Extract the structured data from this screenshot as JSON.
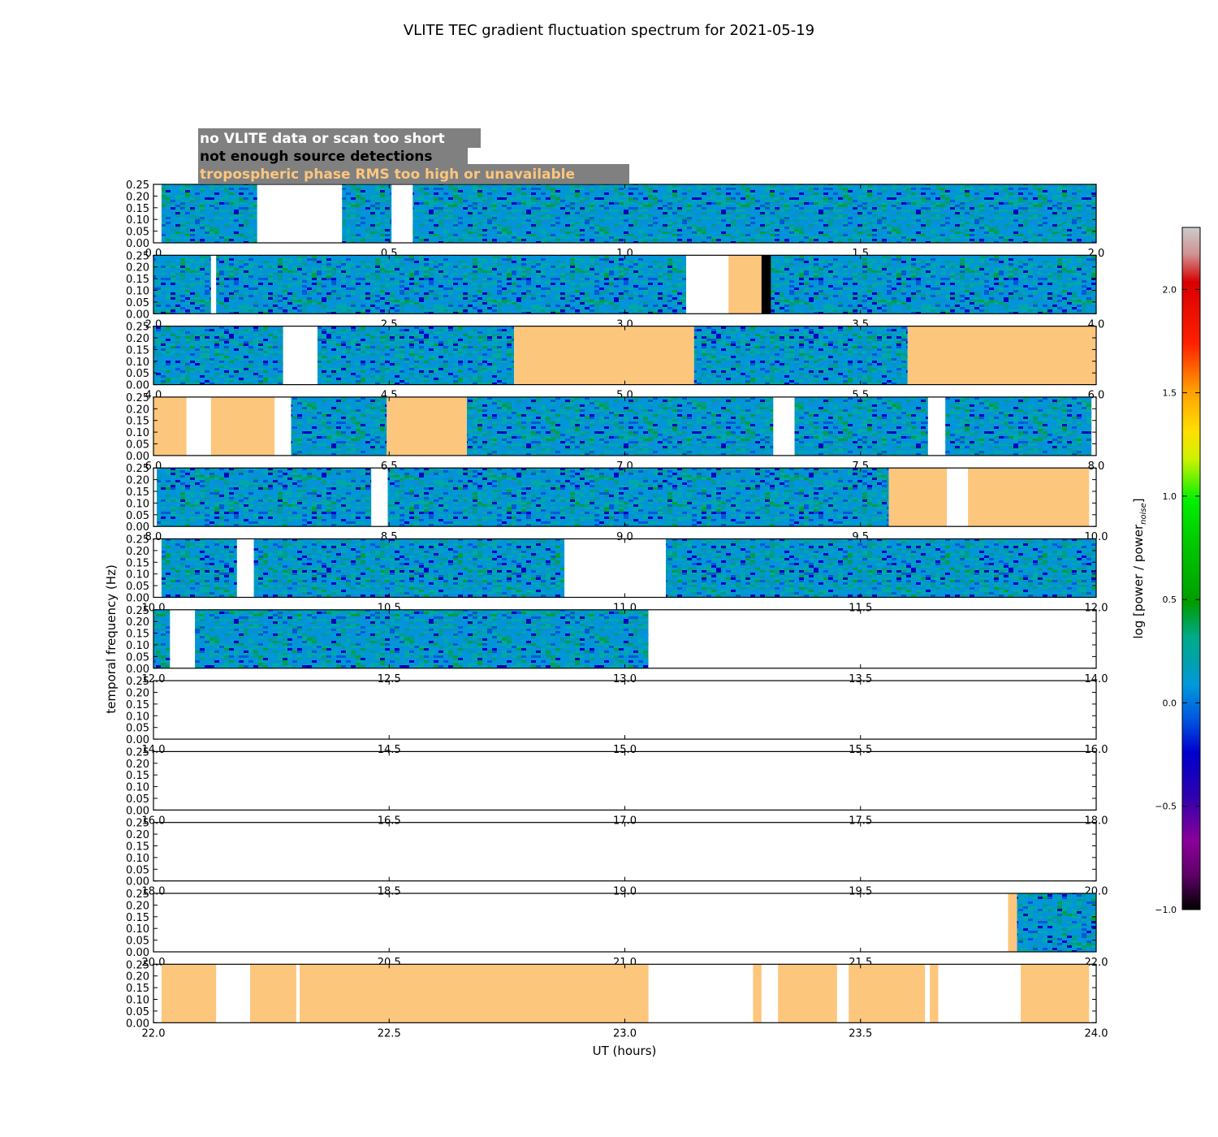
{
  "chart_data": {
    "type": "heatmap",
    "title": "VLITE TEC gradient fluctuation spectrum for 2021-05-19",
    "xlabel": "UT (hours)",
    "ylabel": "temporal frequency (Hz)",
    "ylim": [
      0,
      0.25
    ],
    "yticks": [
      "0.00",
      "0.05",
      "0.10",
      "0.15",
      "0.20",
      "0.25"
    ],
    "colorbar": {
      "label_main": "log [power / power",
      "label_sub": "noise",
      "label_end": "]",
      "range": [
        -1.0,
        2.3
      ],
      "ticks": [
        "−1.0",
        "−0.5",
        "0.0",
        "0.5",
        "1.0",
        "1.5",
        "2.0"
      ],
      "tick_values": [
        -1.0,
        -0.5,
        0.0,
        0.5,
        1.0,
        1.5,
        2.0
      ]
    },
    "legend": [
      {
        "text": "no VLITE data or scan too short",
        "color": "#ffffff"
      },
      {
        "text": "not enough source detections",
        "color": "#000000"
      },
      {
        "text": "tropospheric phase RMS too high or unavailable",
        "color": "#fdc67d"
      }
    ],
    "colors": {
      "tropo": "#fdc67d",
      "nodetect": "#000000",
      "legend_bg": "#808080"
    },
    "panels": [
      {
        "xticks": [
          "0.0",
          "0.5",
          "1.0",
          "1.5",
          "2.0"
        ],
        "t0": 0,
        "t1": 2,
        "segments": [
          {
            "kind": "data",
            "start": 0.017,
            "end": 0.22
          },
          {
            "kind": "data",
            "start": 0.4,
            "end": 0.505
          },
          {
            "kind": "data",
            "start": 0.55,
            "end": 2.0
          }
        ]
      },
      {
        "xticks": [
          "2.0",
          "2.5",
          "3.0",
          "3.5",
          "4.0"
        ],
        "t0": 2,
        "t1": 4,
        "segments": [
          {
            "kind": "data",
            "start": 2.0,
            "end": 2.122
          },
          {
            "kind": "data",
            "start": 2.133,
            "end": 3.13
          },
          {
            "kind": "tropo",
            "start": 3.22,
            "end": 3.29
          },
          {
            "kind": "nodetect",
            "start": 3.29,
            "end": 3.31
          },
          {
            "kind": "data",
            "start": 3.31,
            "end": 4.0
          }
        ]
      },
      {
        "xticks": [
          "4.0",
          "4.5",
          "5.0",
          "5.5",
          "6.0"
        ],
        "t0": 4,
        "t1": 6,
        "segments": [
          {
            "kind": "data",
            "start": 4.0,
            "end": 4.275
          },
          {
            "kind": "data",
            "start": 4.348,
            "end": 4.765
          },
          {
            "kind": "tropo",
            "start": 4.765,
            "end": 5.147
          },
          {
            "kind": "data",
            "start": 5.147,
            "end": 5.6
          },
          {
            "kind": "tropo",
            "start": 5.6,
            "end": 6.0
          }
        ]
      },
      {
        "xticks": [
          "6.0",
          "6.5",
          "7.0",
          "7.5",
          "8.0"
        ],
        "t0": 6,
        "t1": 8,
        "segments": [
          {
            "kind": "tropo",
            "start": 6.0,
            "end": 6.07
          },
          {
            "kind": "tropo",
            "start": 6.122,
            "end": 6.257
          },
          {
            "kind": "data",
            "start": 6.292,
            "end": 6.495
          },
          {
            "kind": "tropo",
            "start": 6.495,
            "end": 6.665
          },
          {
            "kind": "data",
            "start": 6.665,
            "end": 7.315
          },
          {
            "kind": "data",
            "start": 7.36,
            "end": 7.643
          },
          {
            "kind": "data",
            "start": 7.68,
            "end": 7.99
          }
        ]
      },
      {
        "xticks": [
          "8.0",
          "8.5",
          "9.0",
          "9.5",
          "10.0"
        ],
        "t0": 8,
        "t1": 10,
        "segments": [
          {
            "kind": "data",
            "start": 8.007,
            "end": 8.462
          },
          {
            "kind": "data",
            "start": 8.497,
            "end": 9.56
          },
          {
            "kind": "tropo",
            "start": 9.56,
            "end": 9.683
          },
          {
            "kind": "tropo",
            "start": 9.728,
            "end": 9.985
          }
        ]
      },
      {
        "xticks": [
          "10.0",
          "10.5",
          "11.0",
          "11.5",
          "12.0"
        ],
        "t0": 10,
        "t1": 12,
        "segments": [
          {
            "kind": "data",
            "start": 10.017,
            "end": 10.177
          },
          {
            "kind": "data",
            "start": 10.213,
            "end": 10.872
          },
          {
            "kind": "data",
            "start": 11.087,
            "end": 12.0
          }
        ]
      },
      {
        "xticks": [
          "12.0",
          "12.5",
          "13.0",
          "13.5",
          "14.0"
        ],
        "t0": 12,
        "t1": 14,
        "segments": [
          {
            "kind": "data",
            "start": 12.0,
            "end": 12.035
          },
          {
            "kind": "data",
            "start": 12.088,
            "end": 13.05
          }
        ]
      },
      {
        "xticks": [
          "14.0",
          "14.5",
          "15.0",
          "15.5",
          "16.0"
        ],
        "t0": 14,
        "t1": 16,
        "segments": []
      },
      {
        "xticks": [
          "16.0",
          "16.5",
          "17.0",
          "17.5",
          "18.0"
        ],
        "t0": 16,
        "t1": 18,
        "segments": []
      },
      {
        "xticks": [
          "18.0",
          "18.5",
          "19.0",
          "19.5",
          "20.0"
        ],
        "t0": 18,
        "t1": 20,
        "segments": []
      },
      {
        "xticks": [
          "20.0",
          "20.5",
          "21.0",
          "21.5",
          "22.0"
        ],
        "t0": 20,
        "t1": 22,
        "segments": [
          {
            "kind": "tropo",
            "start": 21.813,
            "end": 21.832
          },
          {
            "kind": "data",
            "start": 21.832,
            "end": 22.0
          }
        ]
      },
      {
        "xticks": [
          "22.0",
          "22.5",
          "23.0",
          "23.5",
          "24.0"
        ],
        "t0": 22,
        "t1": 24,
        "segments": [
          {
            "kind": "tropo",
            "start": 22.017,
            "end": 22.133
          },
          {
            "kind": "tropo",
            "start": 22.205,
            "end": 22.303
          },
          {
            "kind": "tropo",
            "start": 22.31,
            "end": 23.05
          },
          {
            "kind": "tropo",
            "start": 23.272,
            "end": 23.29
          },
          {
            "kind": "tropo",
            "start": 23.325,
            "end": 23.45
          },
          {
            "kind": "tropo",
            "start": 23.475,
            "end": 23.637
          },
          {
            "kind": "tropo",
            "start": 23.647,
            "end": 23.665
          },
          {
            "kind": "tropo",
            "start": 23.84,
            "end": 23.985
          }
        ]
      }
    ]
  }
}
